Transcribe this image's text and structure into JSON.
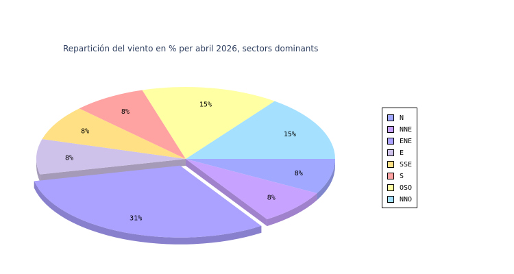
{
  "chart_data": {
    "type": "pie",
    "title": "Repartición del viento en % per abril 2026, sectors dominants",
    "slices": [
      {
        "label": "N",
        "value": 8,
        "display": "8%",
        "color": "#a0a8ff",
        "side": "#7f86cc"
      },
      {
        "label": "NNE",
        "value": 8,
        "display": "8%",
        "color": "#c7a2ff",
        "side": "#9f81cc"
      },
      {
        "label": "ENE",
        "value": 31,
        "display": "31%",
        "color": "#aba2ff",
        "side": "#8880cc",
        "exploded": true
      },
      {
        "label": "E",
        "value": 8,
        "display": "8%",
        "color": "#cfc2ea",
        "side": "#a59ab8"
      },
      {
        "label": "SSE",
        "value": 8,
        "display": "8%",
        "color": "#ffe084",
        "side": "#ccb369"
      },
      {
        "label": "S",
        "value": 8,
        "display": "8%",
        "color": "#ffa3a2",
        "side": "#cc8281"
      },
      {
        "label": "OSO",
        "value": 15,
        "display": "15%",
        "color": "#ffffa3",
        "side": "#cccc82"
      },
      {
        "label": "NNO",
        "value": 15,
        "display": "15%",
        "color": "#a5e1ff",
        "side": "#84b4cc"
      }
    ],
    "legend_position": "right"
  }
}
